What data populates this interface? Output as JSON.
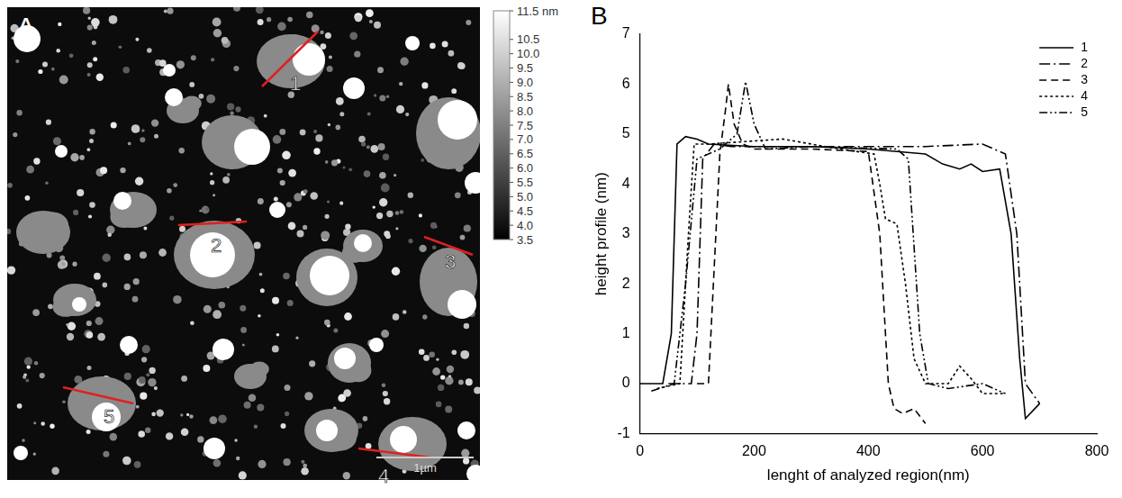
{
  "chart_data": [
    {
      "type": "image",
      "panel_label": "A",
      "annotations": [
        "1",
        "2",
        "3",
        "4",
        "5"
      ],
      "scale_bar": "1µm",
      "colorbar": {
        "range": [
          3.5,
          11.5
        ],
        "ticks": [
          {
            "value": 11.5,
            "label": "11.5 nm"
          },
          10.5,
          {
            "value": 10,
            "label": "10.0"
          },
          9.5,
          {
            "value": 9,
            "label": "9.0"
          },
          8.5,
          {
            "value": 8,
            "label": "8.0"
          },
          7.5,
          {
            "value": 7,
            "label": "7.0"
          },
          6.5,
          {
            "value": 6,
            "label": "6.0"
          },
          5.5,
          {
            "value": 5,
            "label": "5.0"
          },
          4.5,
          {
            "value": 4,
            "label": "4.0"
          },
          3.5
        ]
      }
    },
    {
      "type": "line",
      "panel_label": "B",
      "x_label": "lenght of analyzed region(nm)",
      "y_label": "height profile (nm)",
      "xlim": [
        0,
        800
      ],
      "xticks": [
        0,
        200,
        400,
        600,
        800
      ],
      "ylim": [
        -1,
        7
      ],
      "yticks": [
        -1,
        0,
        1,
        2,
        3,
        4,
        5,
        6,
        7
      ],
      "grid": false,
      "legend": "top-right",
      "series": [
        {
          "name": "1",
          "color": "#000000",
          "line_style": "solid",
          "x": [
            0,
            40,
            55,
            65,
            80,
            100,
            120,
            200,
            300,
            400,
            500,
            530,
            560,
            580,
            600,
            630,
            650,
            665,
            675,
            700
          ],
          "values": [
            0,
            0,
            1,
            4.8,
            4.95,
            4.9,
            4.8,
            4.75,
            4.75,
            4.7,
            4.6,
            4.4,
            4.3,
            4.4,
            4.25,
            4.3,
            3,
            0.5,
            -0.7,
            -0.4
          ]
        },
        {
          "name": "2",
          "color": "#000000",
          "line_style": "dash-dot",
          "x": [
            50,
            90,
            100,
            110,
            130,
            160,
            300,
            500,
            600,
            640,
            660,
            675,
            700
          ],
          "values": [
            0,
            0,
            1,
            4.5,
            4.8,
            4.75,
            4.75,
            4.75,
            4.8,
            4.6,
            3,
            0,
            -0.4
          ]
        },
        {
          "name": "3",
          "color": "#000000",
          "line_style": "dashed",
          "x": [
            100,
            120,
            140,
            150,
            155,
            165,
            180,
            200,
            300,
            400,
            420,
            435,
            445,
            460,
            480,
            500
          ],
          "values": [
            0,
            0,
            4.6,
            5.5,
            6,
            5.2,
            4.8,
            4.7,
            4.7,
            4.65,
            3,
            0,
            -0.5,
            -0.6,
            -0.5,
            -0.8
          ]
        },
        {
          "name": "4",
          "color": "#000000",
          "line_style": "dotted",
          "x": [
            30,
            70,
            85,
            95,
            120,
            250,
            350,
            410,
            420,
            430,
            450,
            465,
            480,
            500,
            540,
            560,
            580,
            600,
            640
          ],
          "values": [
            -0.1,
            0,
            3,
            4.8,
            4.8,
            4.9,
            4.7,
            4.6,
            4,
            3.3,
            3.2,
            2,
            0.5,
            0,
            0,
            0.35,
            0.1,
            -0.2,
            -0.2
          ]
        },
        {
          "name": "5",
          "color": "#000000",
          "line_style": "dash-dot-dot",
          "x": [
            20,
            60,
            80,
            100,
            140,
            170,
            185,
            200,
            220,
            300,
            450,
            470,
            490,
            505,
            540,
            600,
            640
          ],
          "values": [
            -0.15,
            0,
            2,
            4.5,
            4.7,
            5,
            6.05,
            5.2,
            4.7,
            4.75,
            4.7,
            4.5,
            1,
            0,
            -0.1,
            0,
            -0.2
          ]
        }
      ]
    }
  ]
}
